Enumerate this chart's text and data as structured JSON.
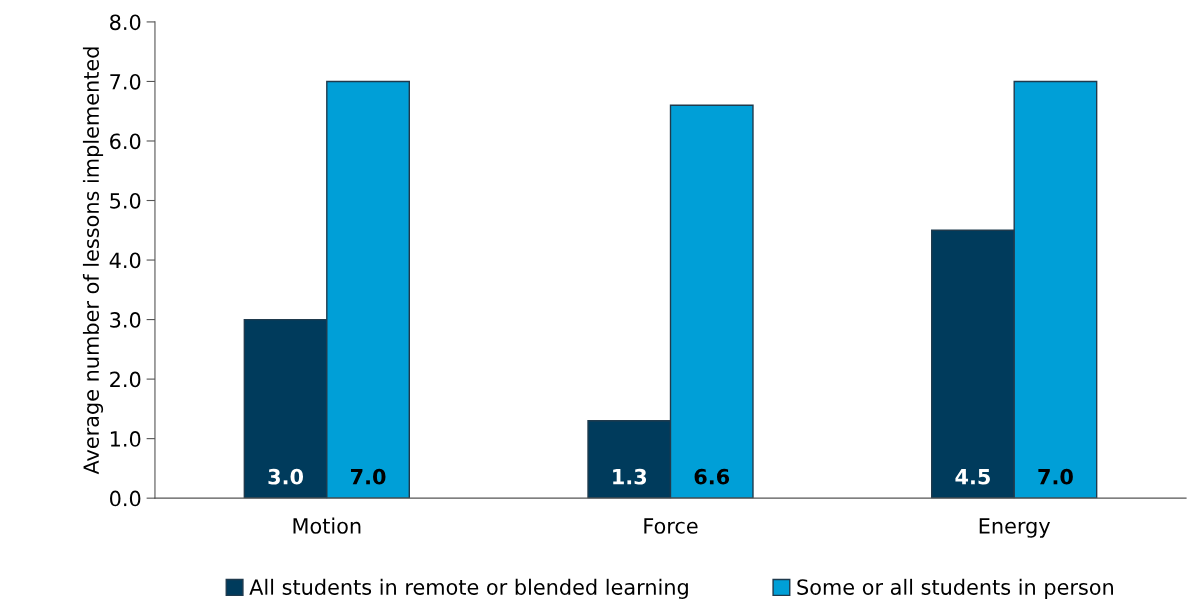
{
  "chart_data": {
    "type": "bar",
    "ylabel": "Average number of lessons implemented",
    "categories": [
      "Motion",
      "Force",
      "Energy"
    ],
    "series": [
      {
        "name": "All students in remote or blended learning",
        "color": "#003b5c",
        "values": [
          3.0,
          1.3,
          4.5
        ],
        "value_labels": [
          "3.0",
          "1.3",
          "4.5"
        ]
      },
      {
        "name": "Some or all students in person",
        "color": "#009fd7",
        "values": [
          7.0,
          6.6,
          7.0
        ],
        "value_labels": [
          "7.0",
          "6.6",
          "7.0"
        ]
      }
    ],
    "ylim": [
      0,
      8
    ],
    "yticks": [
      {
        "value": 0,
        "label": "0.0"
      },
      {
        "value": 1,
        "label": "1.0"
      },
      {
        "value": 2,
        "label": "2.0"
      },
      {
        "value": 3,
        "label": "3.0"
      },
      {
        "value": 4,
        "label": "4.0"
      },
      {
        "value": 5,
        "label": "5.0"
      },
      {
        "value": 6,
        "label": "6.0"
      },
      {
        "value": 7,
        "label": "7.0"
      },
      {
        "value": 8,
        "label": "8.0"
      }
    ],
    "grid": false,
    "legend": "bottom"
  }
}
